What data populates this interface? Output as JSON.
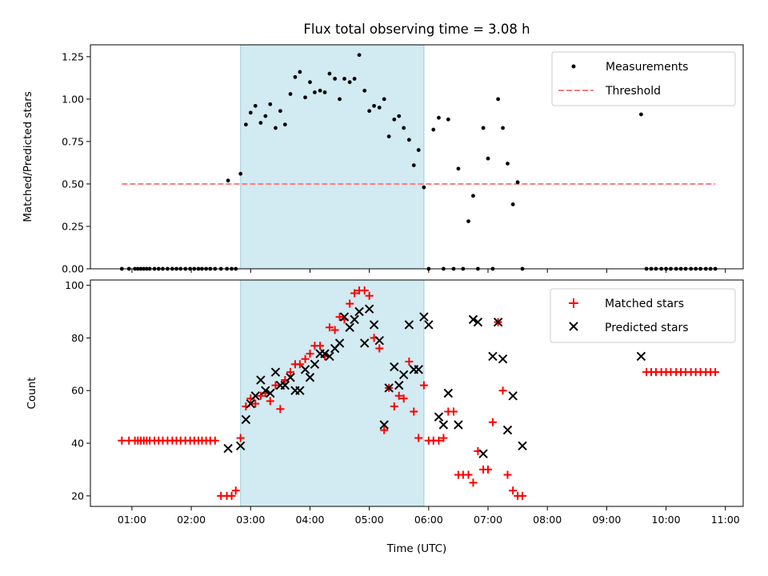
{
  "title": "Flux total observing time = 3.08 h",
  "colors": {
    "span": "#add8e6",
    "threshold": "#ff7f7f",
    "matched": "#ff0000",
    "predicted": "#000000",
    "points": "#000000"
  },
  "chart_data": [
    {
      "type": "scatter",
      "ylabel": "Matched/Predicted stars",
      "xlim": [
        0.3,
        11.3
      ],
      "ylim": [
        0,
        1.32
      ],
      "yticks": [
        "0.00",
        "0.25",
        "0.50",
        "0.75",
        "1.00",
        "1.25"
      ],
      "shaded_span": [
        2.83,
        5.92
      ],
      "legend": {
        "position": "top-right",
        "entries": [
          "Measurements",
          "Threshold"
        ]
      },
      "threshold": {
        "name": "Threshold",
        "value": 0.5,
        "x_range": [
          0.83,
          10.83
        ]
      },
      "series": [
        {
          "name": "Measurements",
          "x": [
            0.83,
            0.95,
            1.05,
            1.1,
            1.15,
            1.2,
            1.25,
            1.3,
            1.38,
            1.45,
            1.52,
            1.6,
            1.68,
            1.75,
            1.82,
            1.9,
            1.98,
            2.05,
            2.12,
            2.18,
            2.25,
            2.32,
            2.4,
            2.5,
            2.6,
            2.68,
            2.75,
            2.62,
            2.83,
            2.92,
            3.0,
            3.08,
            3.17,
            3.25,
            3.33,
            3.42,
            3.5,
            3.58,
            3.67,
            3.75,
            3.83,
            3.92,
            4.0,
            4.08,
            4.17,
            4.25,
            4.33,
            4.42,
            4.5,
            4.58,
            4.67,
            4.75,
            4.83,
            4.92,
            5.0,
            5.08,
            5.17,
            5.25,
            5.33,
            5.42,
            5.5,
            5.58,
            5.67,
            5.75,
            5.83,
            5.92,
            6.0,
            6.08,
            6.17,
            6.25,
            6.33,
            6.42,
            6.5,
            6.58,
            6.67,
            6.75,
            6.83,
            6.92,
            7.0,
            7.08,
            7.17,
            7.25,
            7.33,
            7.42,
            7.5,
            7.58,
            9.58,
            9.67,
            9.75,
            9.83,
            9.92,
            10.0,
            10.08,
            10.17,
            10.25,
            10.33,
            10.42,
            10.5,
            10.58,
            10.67,
            10.75,
            10.83
          ],
          "y": [
            0,
            0,
            0,
            0,
            0,
            0,
            0,
            0,
            0,
            0,
            0,
            0,
            0,
            0,
            0,
            0,
            0,
            0,
            0,
            0,
            0,
            0,
            0,
            0,
            0,
            0,
            0,
            0.52,
            0.56,
            0.85,
            0.92,
            0.96,
            0.86,
            0.9,
            0.97,
            0.83,
            0.93,
            0.85,
            1.03,
            1.13,
            1.16,
            1.01,
            1.1,
            1.04,
            1.05,
            1.04,
            1.15,
            1.12,
            1.0,
            1.12,
            1.1,
            1.12,
            1.26,
            1.05,
            0.93,
            0.96,
            0.95,
            1.0,
            0.78,
            0.88,
            0.9,
            0.83,
            0.76,
            0.61,
            0.7,
            0.48,
            0,
            0.82,
            0.89,
            0,
            0.88,
            0,
            0.59,
            0,
            0.28,
            0.43,
            0,
            0.83,
            0.65,
            0,
            1.0,
            0.83,
            0.62,
            0.38,
            0.51,
            0,
            0.91,
            0,
            0,
            0,
            0,
            0,
            0,
            0,
            0,
            0,
            0,
            0,
            0,
            0,
            0,
            0
          ]
        }
      ]
    },
    {
      "type": "scatter",
      "xlabel": "Time (UTC)",
      "ylabel": "Count",
      "xlim": [
        0.3,
        11.3
      ],
      "ylim": [
        16,
        102
      ],
      "xticks": [
        "01:00",
        "02:00",
        "03:00",
        "04:00",
        "05:00",
        "06:00",
        "07:00",
        "08:00",
        "09:00",
        "10:00",
        "11:00"
      ],
      "yticks": [
        "20",
        "40",
        "60",
        "80",
        "100"
      ],
      "shaded_span": [
        2.83,
        5.92
      ],
      "legend": {
        "position": "top-right",
        "entries": [
          "Matched stars",
          "Predicted stars"
        ]
      },
      "series": [
        {
          "name": "Matched stars",
          "x": [
            0.83,
            0.95,
            1.05,
            1.1,
            1.15,
            1.2,
            1.25,
            1.3,
            1.38,
            1.45,
            1.52,
            1.6,
            1.68,
            1.75,
            1.82,
            1.9,
            1.98,
            2.05,
            2.12,
            2.18,
            2.25,
            2.32,
            2.4,
            2.5,
            2.6,
            2.68,
            2.75,
            2.83,
            2.92,
            3.0,
            3.08,
            3.17,
            3.25,
            3.33,
            3.42,
            3.5,
            3.58,
            3.67,
            3.75,
            3.83,
            3.92,
            4.0,
            4.08,
            4.17,
            4.25,
            4.33,
            4.42,
            4.5,
            4.58,
            4.67,
            4.75,
            4.83,
            4.92,
            5.0,
            5.08,
            5.17,
            5.25,
            5.33,
            5.42,
            5.5,
            5.58,
            5.67,
            5.75,
            5.83,
            5.92,
            6.0,
            6.08,
            6.17,
            6.25,
            6.33,
            6.42,
            6.5,
            6.58,
            6.67,
            6.75,
            6.83,
            6.92,
            7.0,
            7.08,
            7.17,
            7.25,
            7.33,
            7.42,
            7.5,
            7.58,
            9.67,
            9.75,
            9.83,
            9.92,
            10.0,
            10.08,
            10.17,
            10.25,
            10.33,
            10.42,
            10.5,
            10.58,
            10.67,
            10.75,
            10.83
          ],
          "y": [
            41,
            41,
            41,
            41,
            41,
            41,
            41,
            41,
            41,
            41,
            41,
            41,
            41,
            41,
            41,
            41,
            41,
            41,
            41,
            41,
            41,
            41,
            41,
            20,
            20,
            20,
            22,
            42,
            54,
            57,
            55,
            58,
            59,
            56,
            62,
            53,
            64,
            67,
            70,
            70,
            72,
            74,
            77,
            77,
            73,
            84,
            83,
            88,
            87,
            93,
            97,
            98,
            98,
            96,
            80,
            76,
            45,
            61,
            54,
            58,
            57,
            71,
            52,
            42,
            62,
            41,
            41,
            41,
            42,
            52,
            52,
            28,
            28,
            28,
            25,
            37,
            30,
            30,
            48,
            86,
            60,
            28,
            22,
            20,
            20,
            67,
            67,
            67,
            67,
            67,
            67,
            67,
            67,
            67,
            67,
            67,
            67,
            67,
            67,
            67
          ]
        },
        {
          "name": "Predicted stars",
          "x": [
            2.62,
            2.83,
            2.92,
            3.0,
            3.08,
            3.17,
            3.25,
            3.33,
            3.42,
            3.5,
            3.58,
            3.67,
            3.75,
            3.83,
            3.92,
            4.0,
            4.08,
            4.17,
            4.25,
            4.33,
            4.42,
            4.5,
            4.58,
            4.67,
            4.75,
            4.83,
            4.92,
            5.0,
            5.08,
            5.17,
            5.25,
            5.33,
            5.42,
            5.5,
            5.58,
            5.67,
            5.75,
            5.83,
            5.92,
            6.0,
            6.17,
            6.25,
            6.33,
            6.5,
            6.75,
            6.83,
            6.92,
            7.08,
            7.17,
            7.25,
            7.33,
            7.42,
            7.58,
            9.58
          ],
          "y": [
            38,
            39,
            49,
            55,
            58,
            64,
            60,
            59,
            67,
            62,
            62,
            65,
            60,
            60,
            68,
            65,
            70,
            74,
            74,
            73,
            76,
            78,
            88,
            84,
            87,
            90,
            78,
            91,
            85,
            79,
            47,
            61,
            69,
            62,
            66,
            85,
            68,
            68,
            88,
            85,
            50,
            47,
            59,
            47,
            87,
            86,
            36,
            73,
            86,
            72,
            45,
            58,
            39,
            73
          ]
        }
      ]
    }
  ]
}
